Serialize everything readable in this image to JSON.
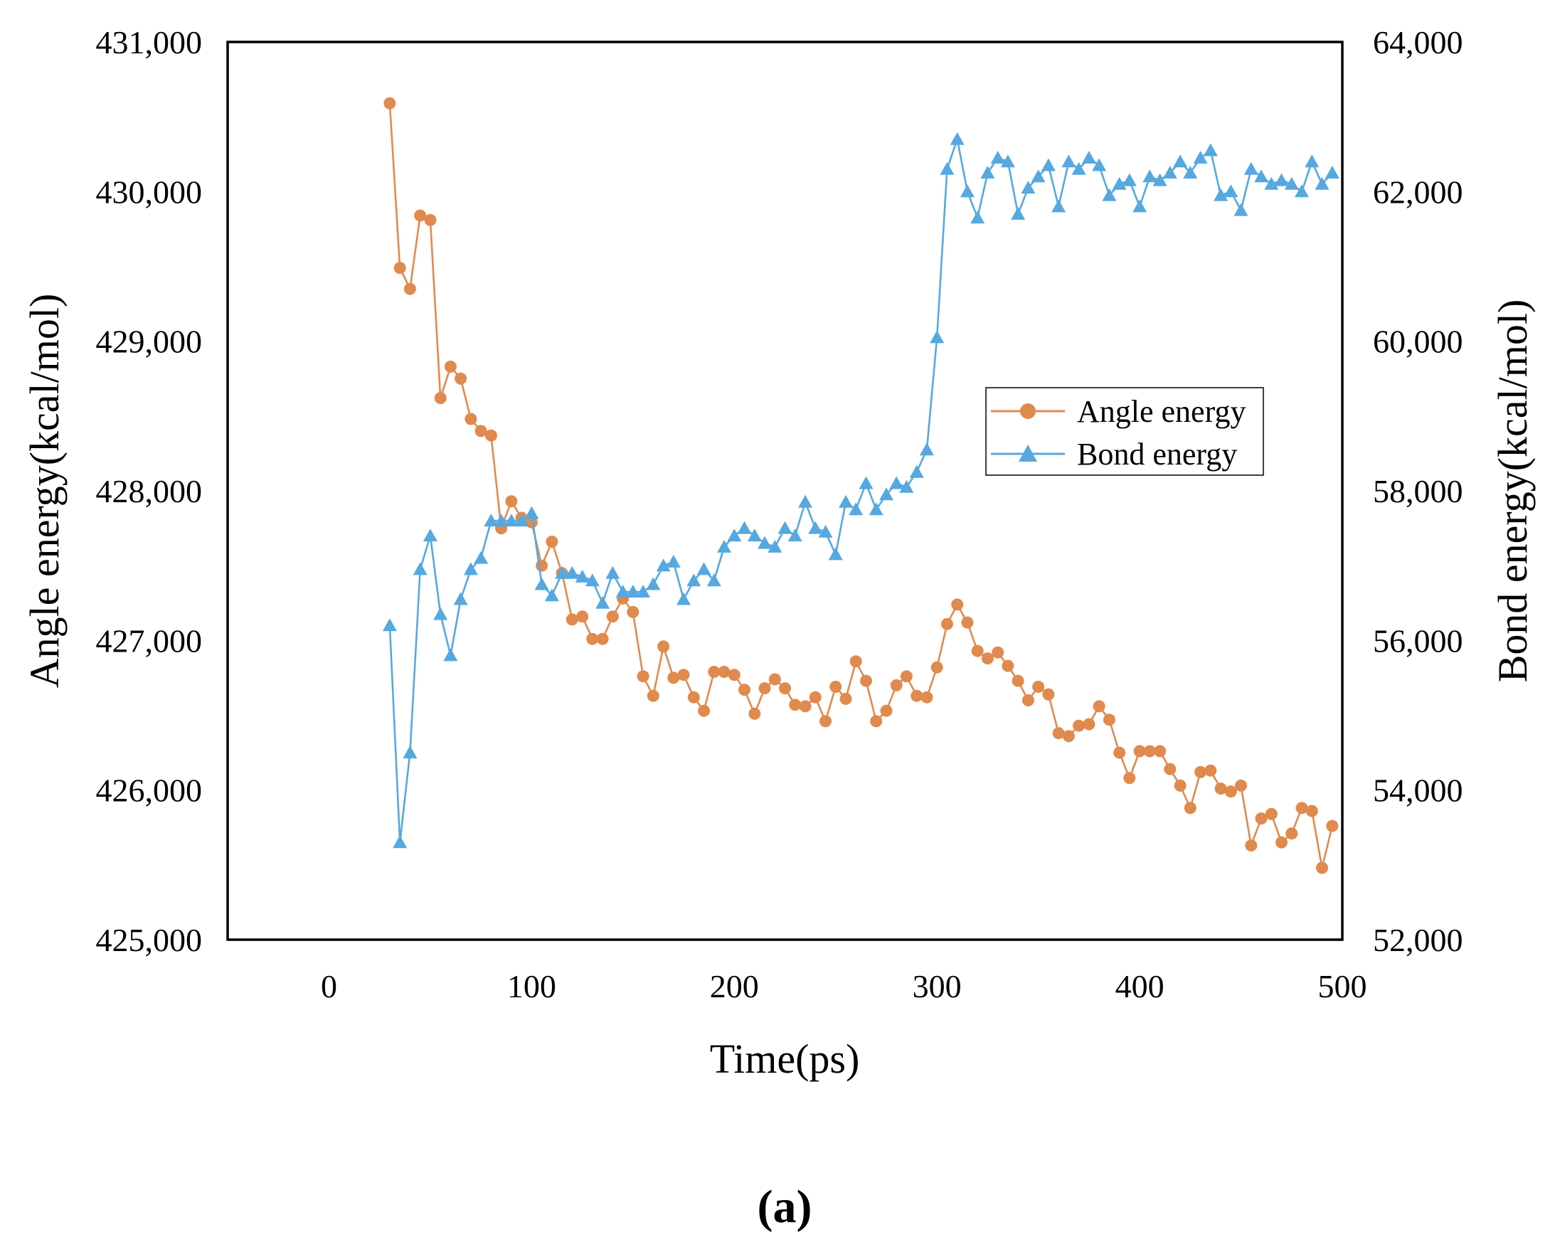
{
  "chart_data": {
    "type": "line",
    "title": "",
    "xlabel": "Time(ps)",
    "ylabel_left": "Angle energy(kcal/mol)",
    "ylabel_right": "Bond energy(kcal/mol)",
    "xlim": [
      -50,
      500
    ],
    "ylim_left": [
      425000,
      431000
    ],
    "ylim_right": [
      52000,
      64000
    ],
    "x_ticks": [
      0,
      100,
      200,
      300,
      400,
      500
    ],
    "x_tick_labels": [
      "0",
      "100",
      "200",
      "300",
      "400",
      "500"
    ],
    "y_left_ticks": [
      425000,
      426000,
      427000,
      428000,
      429000,
      430000,
      431000
    ],
    "y_left_tick_labels": [
      "425,000",
      "426,000",
      "427,000",
      "428,000",
      "429,000",
      "430,000",
      "431,000"
    ],
    "y_right_ticks": [
      52000,
      54000,
      56000,
      58000,
      60000,
      62000,
      64000
    ],
    "y_right_tick_labels": [
      "52,000",
      "54,000",
      "56,000",
      "58,000",
      "60,000",
      "62,000",
      "64,000"
    ],
    "grid": false,
    "legend_position": "right-center",
    "x": [
      30,
      35,
      40,
      45,
      50,
      55,
      60,
      65,
      70,
      75,
      80,
      85,
      90,
      95,
      100,
      105,
      110,
      115,
      120,
      125,
      130,
      135,
      140,
      145,
      150,
      155,
      160,
      165,
      170,
      175,
      180,
      185,
      190,
      195,
      200,
      205,
      210,
      215,
      220,
      225,
      230,
      235,
      240,
      245,
      250,
      255,
      260,
      265,
      270,
      275,
      280,
      285,
      290,
      295,
      300,
      305,
      310,
      315,
      320,
      325,
      330,
      335,
      340,
      345,
      350,
      355,
      360,
      365,
      370,
      375,
      380,
      385,
      390,
      395,
      400,
      405,
      410,
      415,
      420,
      425,
      430,
      435,
      440,
      445,
      450,
      455,
      460,
      465,
      470,
      475,
      480,
      485,
      490,
      495
    ],
    "series": [
      {
        "name": "Angle energy",
        "axis": "left",
        "color": "#E08A4E",
        "marker": "circle",
        "values": [
          430590,
          429490,
          429350,
          429840,
          429810,
          428620,
          428830,
          428750,
          428480,
          428400,
          428370,
          427750,
          427930,
          427820,
          427790,
          427500,
          427660,
          427450,
          427140,
          427160,
          427010,
          427010,
          427160,
          427280,
          427190,
          426760,
          426630,
          426960,
          426750,
          426770,
          426620,
          426530,
          426790,
          426790,
          426770,
          426670,
          426510,
          426680,
          426740,
          426680,
          426570,
          426560,
          426620,
          426460,
          426690,
          426610,
          426860,
          426730,
          426460,
          426530,
          426700,
          426760,
          426630,
          426620,
          426820,
          427110,
          427240,
          427120,
          426930,
          426880,
          426920,
          426830,
          426730,
          426600,
          426690,
          426640,
          426380,
          426360,
          426430,
          426440,
          426560,
          426470,
          426250,
          426080,
          426260,
          426260,
          426260,
          426140,
          426030,
          425880,
          426120,
          426130,
          426010,
          425990,
          426030,
          425630,
          425810,
          425840,
          425650,
          425710,
          425880,
          425860,
          425480,
          425760
        ]
      },
      {
        "name": "Bond energy",
        "axis": "right",
        "color": "#56A8E0",
        "marker": "triangle",
        "values": [
          56200,
          53300,
          54500,
          56950,
          57400,
          56350,
          55800,
          56550,
          56950,
          57100,
          57600,
          57600,
          57600,
          57600,
          57700,
          56750,
          56600,
          56900,
          56900,
          56850,
          56800,
          56500,
          56900,
          56650,
          56650,
          56650,
          56750,
          57000,
          57050,
          56550,
          56800,
          56950,
          56800,
          57250,
          57400,
          57500,
          57400,
          57300,
          57250,
          57500,
          57400,
          57850,
          57500,
          57450,
          57150,
          57850,
          57750,
          58100,
          57750,
          57950,
          58100,
          58050,
          58250,
          58550,
          60050,
          62300,
          62700,
          62000,
          61650,
          62250,
          62450,
          62400,
          61700,
          62050,
          62200,
          62350,
          61800,
          62400,
          62300,
          62450,
          62350,
          61950,
          62100,
          62150,
          61800,
          62200,
          62150,
          62250,
          62400,
          62250,
          62450,
          62550,
          61950,
          62000,
          61750,
          62300,
          62200,
          62100,
          62150,
          62100,
          62000,
          62400,
          62100,
          62250
        ]
      }
    ],
    "panel_label": "(a)"
  }
}
